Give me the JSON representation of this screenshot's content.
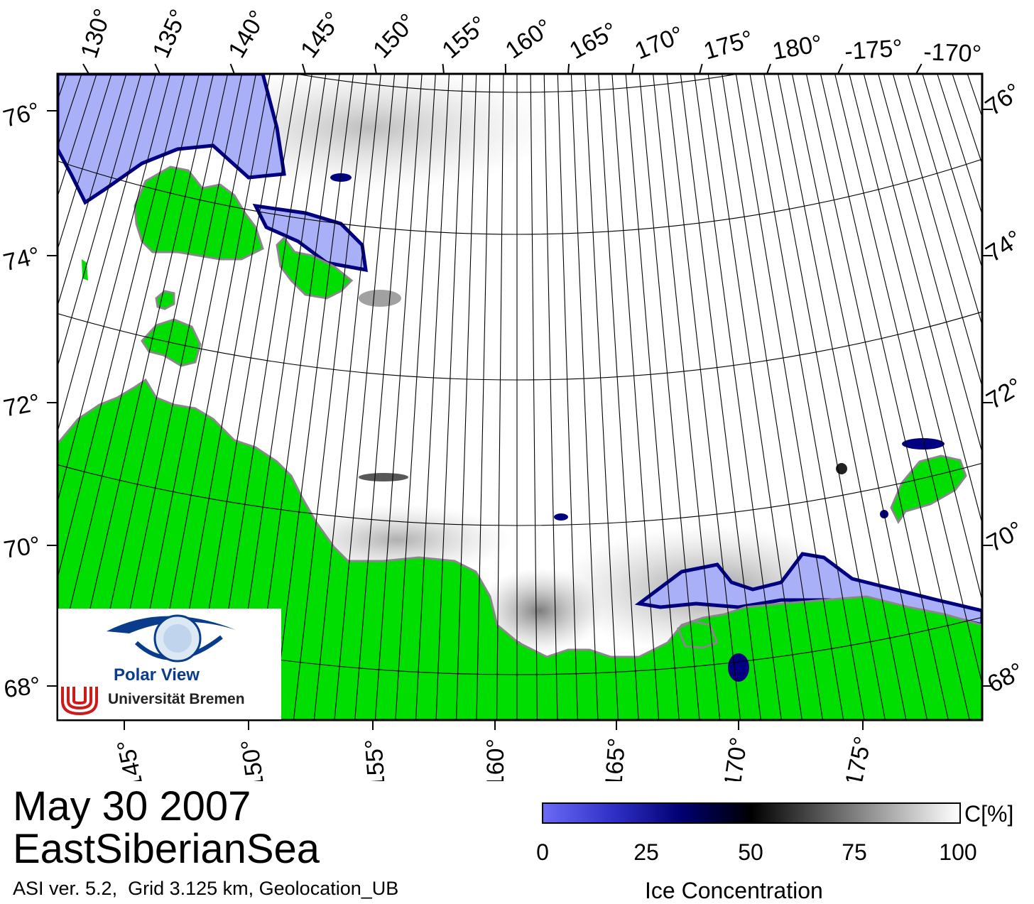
{
  "map": {
    "date": "May 30 2007",
    "region": "EastSiberianSea",
    "metadata": "ASI ver. 5.2,  Grid 3.125 km, Geolocation_UB",
    "top_longitude_labels": [
      "130°",
      "135°",
      "140°",
      "145°",
      "150°",
      "155°",
      "160°",
      "165°",
      "170°",
      "175°",
      "180°",
      "-175°",
      "-170°"
    ],
    "bottom_longitude_labels": [
      "145°",
      "150°",
      "155°",
      "160°",
      "165°",
      "170°",
      "175°"
    ],
    "left_latitude_labels": [
      "76°",
      "74°",
      "72°",
      "70°",
      "68°"
    ],
    "right_latitude_labels": [
      "76°",
      "74°",
      "72°",
      "70°",
      "68°"
    ],
    "colors": {
      "land": "#00dd00",
      "land_edge": "#888888",
      "open_water": "#ffffff",
      "low_ice": "#aab0f8",
      "deep_blue": "#000080",
      "grid": "#000000"
    }
  },
  "logo": {
    "title": "Polar View",
    "institution": "Universität Bremen"
  },
  "colorbar": {
    "title": "Ice Concentration",
    "unit": "C[%]",
    "ticks": [
      "0",
      "25",
      "50",
      "75",
      "100"
    ],
    "gradient_colors": [
      "#6a6af5",
      "#3030c8",
      "#000070",
      "#000000",
      "#555555",
      "#aaaaaa",
      "#ffffff"
    ]
  }
}
